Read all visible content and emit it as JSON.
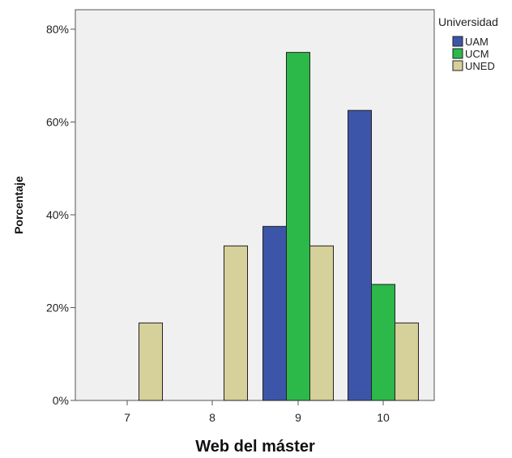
{
  "chart_data": {
    "type": "bar",
    "categories": [
      "7",
      "8",
      "9",
      "10"
    ],
    "series": [
      {
        "name": "UAM",
        "values": [
          0,
          0,
          37.5,
          62.5
        ],
        "color": "#3d55a8"
      },
      {
        "name": "UCM",
        "values": [
          0,
          0,
          75,
          25
        ],
        "color": "#2db84a"
      },
      {
        "name": "UNED",
        "values": [
          16.7,
          33.3,
          33.3,
          16.7
        ],
        "color": "#d6d09a"
      }
    ],
    "xlabel": "Web del máster",
    "ylabel": "Porcentaje",
    "ylim": [
      0,
      80
    ],
    "yticks": [
      "0%",
      "20%",
      "40%",
      "60%",
      "80%"
    ],
    "legend_title": "Universidad",
    "legend_position": "right",
    "grid": false,
    "plot_background": "#f0f0f0"
  }
}
